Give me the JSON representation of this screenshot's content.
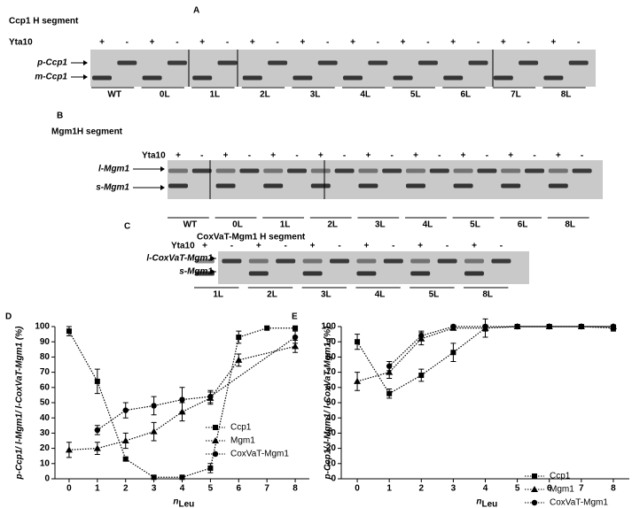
{
  "panels": [
    {
      "label": "A",
      "title": "Ccp1 H segment",
      "treatment_label": "Yta10",
      "treatments": [
        "+",
        "-",
        "+",
        "-",
        "+",
        "-",
        "+",
        "-",
        "+",
        "-",
        "+",
        "-",
        "+",
        "-",
        "+",
        "-",
        "+",
        "-",
        "+",
        "-"
      ],
      "band_labels": [
        "p-Ccp1",
        "m-Ccp1"
      ],
      "groups": [
        "WT",
        "0L",
        "1L",
        "2L",
        "3L",
        "4L",
        "5L",
        "6L",
        "7L",
        "8L"
      ]
    },
    {
      "label": "B",
      "title": "Mgm1H segment",
      "treatment_label": "Yta10",
      "treatments": [
        "+",
        "-",
        "+",
        "-",
        "+",
        "-",
        "+",
        "-",
        "+",
        "-",
        "+",
        "-",
        "+",
        "-",
        "+",
        "-",
        "+",
        "-"
      ],
      "band_labels": [
        "l-Mgm1",
        "s-Mgm1"
      ],
      "groups": [
        "WT",
        "0L",
        "1L",
        "2L",
        "3L",
        "4L",
        "5L",
        "6L",
        "8L"
      ]
    },
    {
      "label": "C",
      "title": "CoxVaT-Mgm1 H segment",
      "treatment_label": "Yta10",
      "treatments": [
        "+",
        "-",
        "+",
        "-",
        "+",
        "-",
        "+",
        "-",
        "+",
        "-",
        "+",
        "-"
      ],
      "band_labels": [
        "l-CoxVaT-Mgm1",
        "s-Mgm1"
      ],
      "groups": [
        "1L",
        "2L",
        "3L",
        "4L",
        "5L",
        "8L"
      ]
    }
  ],
  "chart_data": [
    {
      "type": "line",
      "panel_label": "D",
      "y_label": "p-Ccp1/ l-Mgm1/ l-CoxVaT-Mgm1 (%)",
      "x_label": "n",
      "x_label_sub": "Leu",
      "xlim": [
        -0.5,
        8.5
      ],
      "xticks": [
        0,
        1,
        2,
        3,
        4,
        5,
        6,
        7,
        8
      ],
      "ylim": [
        0,
        100
      ],
      "yticks": [
        0,
        10,
        20,
        30,
        40,
        50,
        60,
        70,
        80,
        90,
        100
      ],
      "legend": "lower-right",
      "series": [
        {
          "name": "Ccp1",
          "color": "#000000",
          "marker": "square",
          "x": [
            0,
            1,
            2,
            3,
            4,
            5,
            6,
            7,
            8
          ],
          "values": [
            97,
            64,
            13,
            1,
            1,
            7,
            93,
            99,
            99
          ],
          "errors": [
            3,
            8,
            1,
            1,
            1,
            3,
            4,
            1,
            1
          ]
        },
        {
          "name": "Mgm1",
          "color": "#000000",
          "marker": "triangle",
          "x": [
            0,
            1,
            2,
            3,
            4,
            5,
            6,
            8
          ],
          "values": [
            19,
            20,
            25,
            31,
            44,
            53,
            78,
            87
          ],
          "errors": [
            5,
            4,
            5,
            6,
            6,
            4,
            4,
            4
          ]
        },
        {
          "name": "CoxVaT-Mgm1",
          "color": "#000000",
          "marker": "circle",
          "x": [
            1,
            2,
            3,
            4,
            5,
            8
          ],
          "values": [
            32,
            45,
            48,
            52,
            54,
            93
          ],
          "errors": [
            3,
            5,
            6,
            8,
            4,
            4
          ]
        }
      ]
    },
    {
      "type": "line",
      "panel_label": "E",
      "y_label": "p-Ccp1/ l-Mgm1/ l-CoxVaT-Mgm1 (%)",
      "x_label": "n",
      "x_label_sub": "Leu",
      "xlim": [
        -0.5,
        8.5
      ],
      "xticks": [
        0,
        1,
        2,
        3,
        4,
        5,
        6,
        7,
        8
      ],
      "ylim": [
        0,
        100
      ],
      "yticks": [
        0,
        10,
        20,
        30,
        40,
        50,
        60,
        70,
        80,
        90,
        100
      ],
      "legend": "lower-right",
      "series": [
        {
          "name": "Ccp1",
          "color": "#000000",
          "marker": "square",
          "x": [
            0,
            1,
            2,
            3,
            4,
            5,
            6,
            7,
            8
          ],
          "values": [
            90,
            56,
            68,
            83,
            99,
            100,
            100,
            100,
            99
          ],
          "errors": [
            5,
            3,
            4,
            6,
            2,
            1,
            1,
            1,
            2
          ]
        },
        {
          "name": "Mgm1",
          "color": "#000000",
          "marker": "triangle",
          "x": [
            0,
            1,
            2,
            3,
            4,
            5,
            6,
            7,
            8
          ],
          "values": [
            64,
            70,
            92,
            99,
            99,
            100,
            100,
            100,
            100
          ],
          "errors": [
            6,
            4,
            4,
            1,
            6,
            1,
            1,
            1,
            1
          ]
        },
        {
          "name": "CoxVaT-Mgm1",
          "color": "#000000",
          "marker": "circle",
          "x": [
            1,
            2,
            3,
            4,
            5,
            6,
            7,
            8
          ],
          "values": [
            74,
            94,
            100,
            100,
            100,
            100,
            100,
            100
          ],
          "errors": [
            3,
            3,
            1,
            1,
            1,
            1,
            1,
            1
          ]
        }
      ]
    }
  ]
}
